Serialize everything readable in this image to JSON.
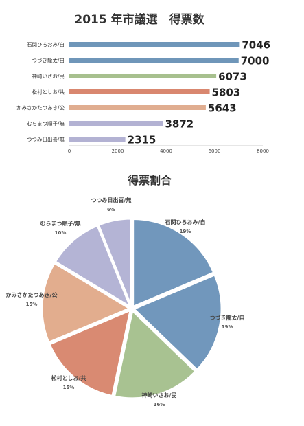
{
  "chart_data": [
    {
      "type": "bar",
      "orientation": "horizontal",
      "title": "2015 年市議選　得票数",
      "categories": [
        "石関ひろおみ/自",
        "つづき龍太/自",
        "神崎いさお/民",
        "松村としお/共",
        "かみさかたつあき/公",
        "むらまつ順子/無",
        "つつみ日出喜/無"
      ],
      "values": [
        7046,
        7000,
        6073,
        5803,
        5643,
        3872,
        2315
      ],
      "data_labels": [
        "7046",
        "7000",
        "6073",
        "5803",
        "5643",
        "3872",
        "2315"
      ],
      "colors": [
        "#6f96b9",
        "#6f96b9",
        "#a7c08e",
        "#d9876f",
        "#e0ad90",
        "#b3b2d3",
        "#b3b2d3"
      ],
      "xlim": [
        0,
        8000
      ],
      "xticks": [
        "0",
        "2000",
        "4000",
        "6000",
        "8000"
      ],
      "grid": false,
      "xlabel": "",
      "ylabel": ""
    },
    {
      "type": "pie",
      "title": "得票割合",
      "labels": [
        "石関ひろおみ/自",
        "つづき龍太/自",
        "神崎いさお/民",
        "松村としお/共",
        "かみさかたつあき/公",
        "むらまつ順子/無",
        "つつみ日出喜/無"
      ],
      "values": [
        7046,
        7000,
        6073,
        5803,
        5643,
        3872,
        2315
      ],
      "percent_labels": [
        "19%",
        "19%",
        "16%",
        "15%",
        "15%",
        "10%",
        "6%"
      ],
      "colors": [
        "#7197bc",
        "#7197bc",
        "#a8c291",
        "#d98a72",
        "#e2ad8e",
        "#b4b4d5",
        "#b4b4d5"
      ],
      "start_angle": "12 o'clock",
      "direction": "clockwise"
    }
  ]
}
